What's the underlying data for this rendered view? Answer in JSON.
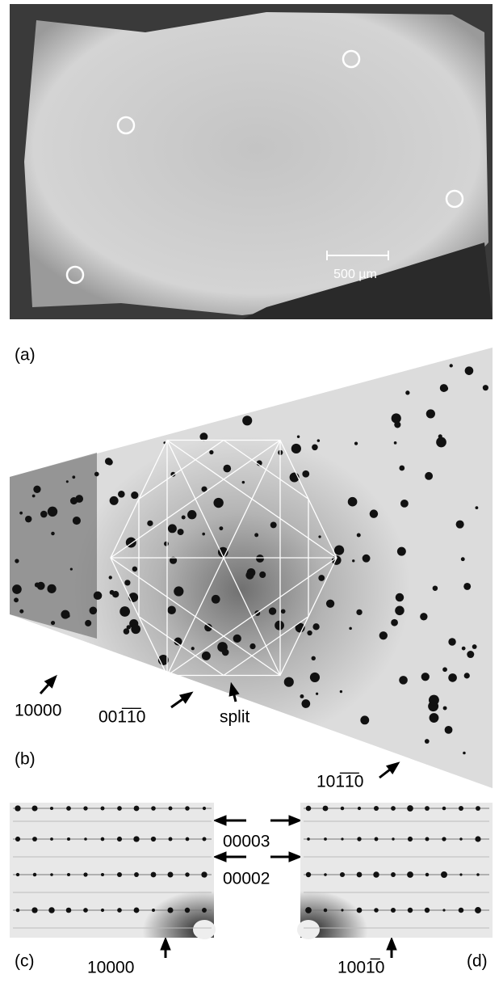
{
  "panels": {
    "a": {
      "label": "(a)",
      "scale_bar": "500 µm"
    },
    "b": {
      "label": "(b)",
      "annotations": [
        "10000",
        "001̅1̅0",
        "split",
        "101̅1̅0"
      ]
    },
    "c": {
      "label": "(c)",
      "annotations": [
        "10000"
      ]
    },
    "d": {
      "label": "(d)",
      "annotations": [
        "1001̅0"
      ]
    },
    "shared": {
      "annotations": [
        "00003",
        "00002"
      ]
    }
  }
}
